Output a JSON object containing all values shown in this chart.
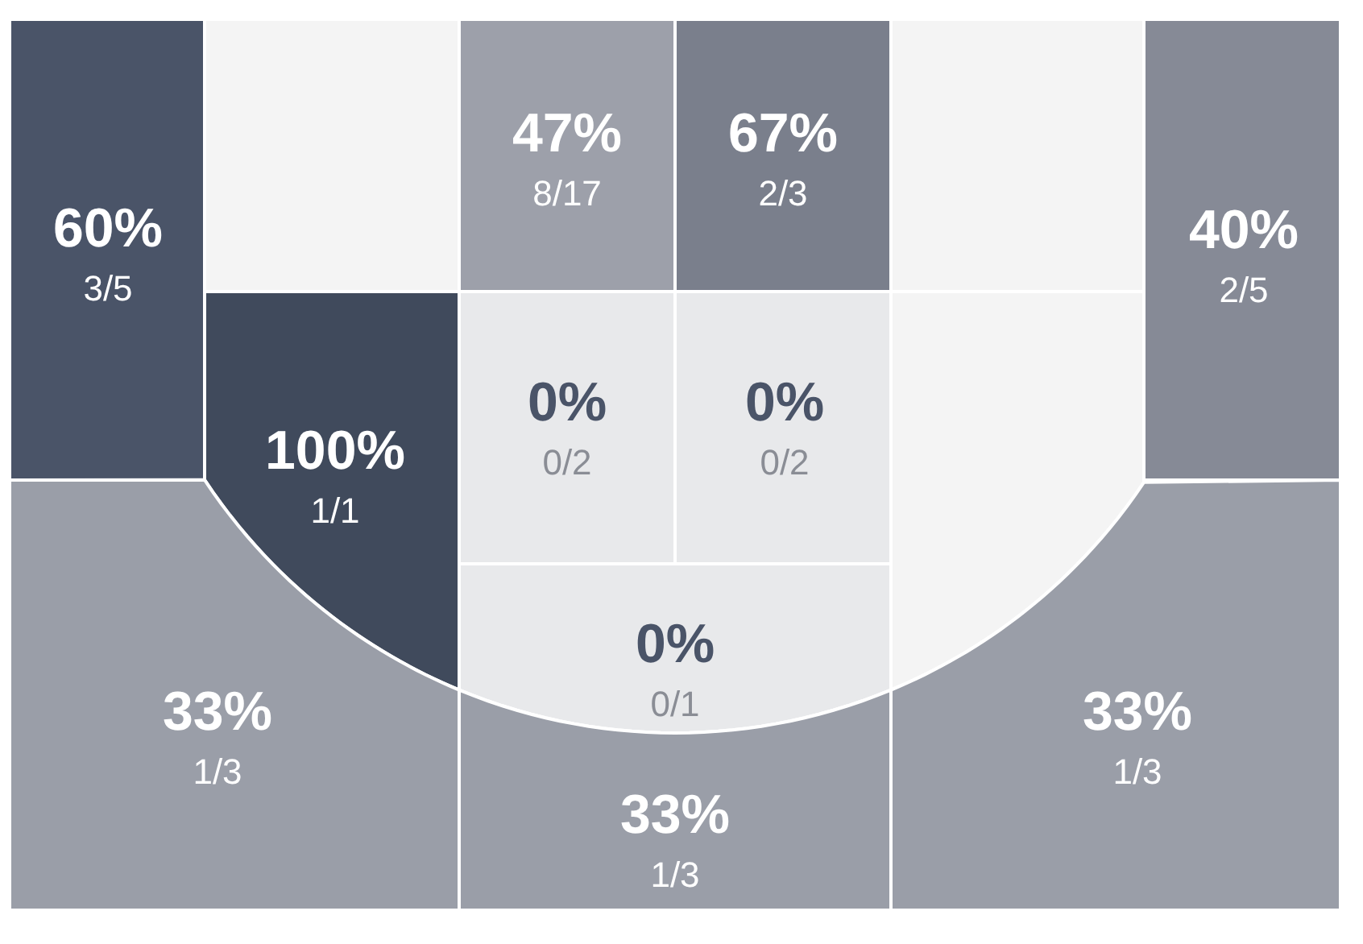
{
  "chart_data": {
    "type": "other",
    "categories": [
      "3/5",
      "8/17",
      "2/3",
      "2/5",
      "1/1",
      "0/2",
      "0/2",
      "0/1",
      "1/3",
      "1/3",
      "1/3"
    ],
    "values": [
      60,
      47,
      67,
      40,
      100,
      0,
      0,
      0,
      33,
      33,
      33
    ],
    "value_labels": [
      "60%",
      "47%",
      "67%",
      "40%",
      "100%",
      "0%",
      "0%",
      "0%",
      "33%",
      "33%",
      "33%"
    ],
    "colors": [
      "#4a5468",
      "#9da0aa",
      "#7a7f8c",
      "#868a96",
      "#404a5c",
      "#e8e9eb",
      "#e8e9eb",
      "#e8e9eb",
      "#9a9ea8",
      "#9a9ea8",
      "#9a9ea8"
    ]
  }
}
